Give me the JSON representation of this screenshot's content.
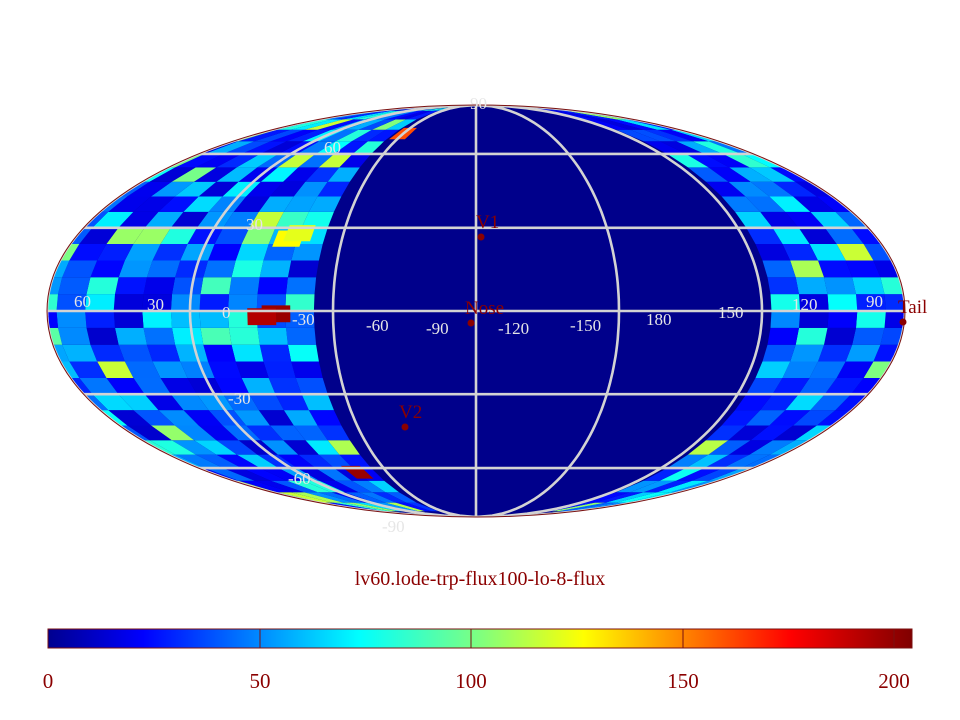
{
  "title": "lv60.lode-trp-flux100-lo-8-flux",
  "colorbar": {
    "min": 0,
    "max": 200,
    "ticks": [
      "0",
      "50",
      "100",
      "150",
      "200"
    ]
  },
  "markers": [
    {
      "name": "V1",
      "lon": -90,
      "lat": 30
    },
    {
      "name": "Nose",
      "lon": -102,
      "lat": 0
    },
    {
      "name": "V2",
      "lon": -75,
      "lat": -34
    },
    {
      "name": "Tail",
      "lon": 75,
      "lat": 0
    }
  ],
  "graticule": {
    "longitude_labels": [
      "60",
      "30",
      "0",
      "-30",
      "-60",
      "-90",
      "-120",
      "-150",
      "180",
      "150",
      "120",
      "90"
    ],
    "latitude_labels": [
      "90",
      "60",
      "30",
      "-30",
      "-60",
      "-90"
    ]
  },
  "colors": {
    "background_map": "#00008b",
    "marker": "#8b0000",
    "grid": "#d3d3d3",
    "text": "#8b0000"
  },
  "chart_data": {
    "type": "heatmap",
    "title": "lv60.lode-trp-flux100-lo-8-flux",
    "projection": "mollweide",
    "value_range": [
      0,
      200
    ],
    "colormap": "jet",
    "background_value": 0,
    "cells": [
      {
        "lon": -90,
        "lat": 70,
        "value": 160
      },
      {
        "lon": -78,
        "lat": -1,
        "value": 195
      },
      {
        "lon": -75,
        "lat": -2,
        "value": 190
      },
      {
        "lon": -80,
        "lat": -62,
        "value": 195
      },
      {
        "lon": -78,
        "lat": 26,
        "value": 125
      },
      {
        "lon": -80,
        "lat": 28,
        "value": 120
      },
      {
        "lon": 130,
        "lat": 10,
        "value": 125
      },
      {
        "lon": 100,
        "lat": 0,
        "value": 115
      },
      {
        "lon": 110,
        "lat": 5,
        "value": 140
      },
      {
        "lon": 112,
        "lat": -8,
        "value": 130
      }
    ]
  }
}
